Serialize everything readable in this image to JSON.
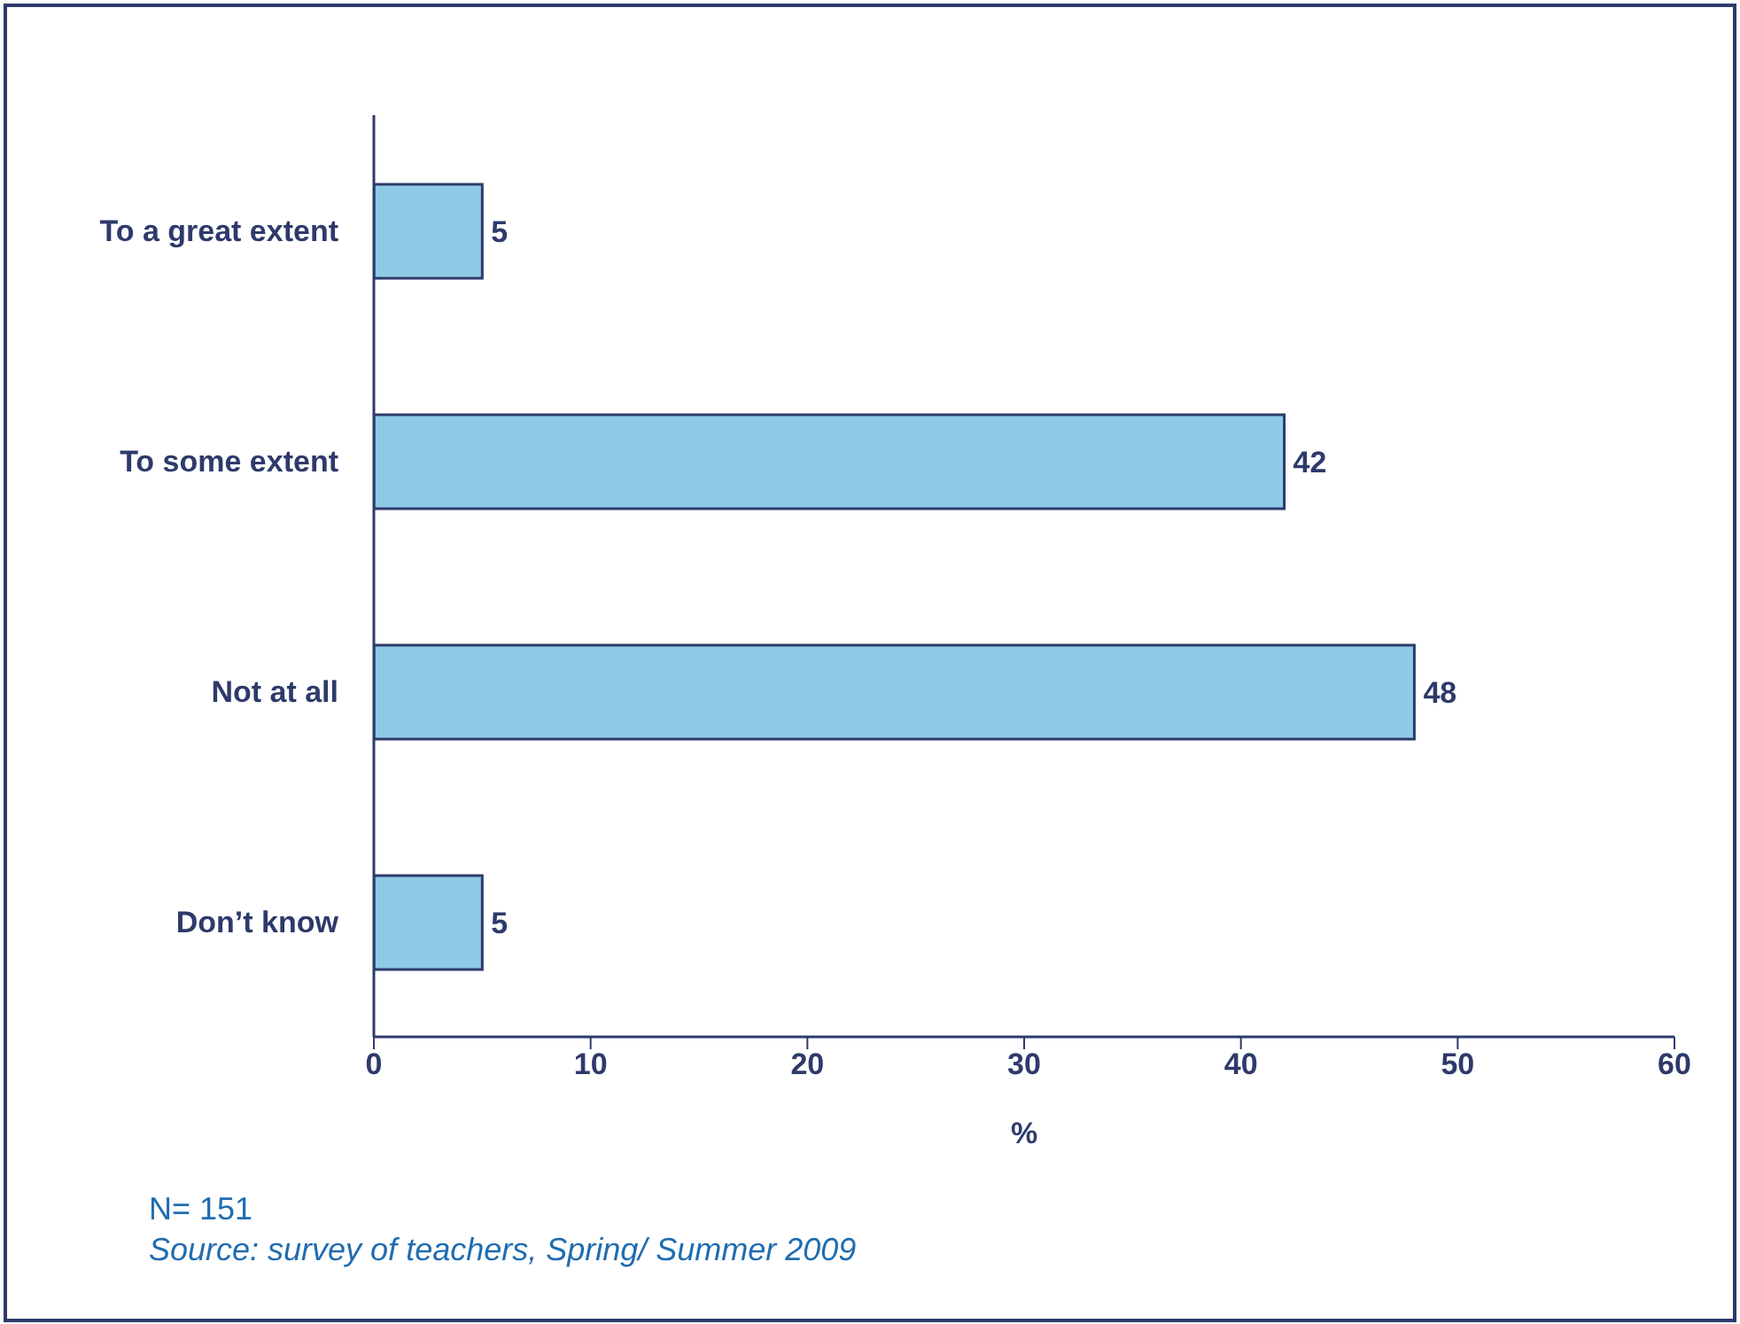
{
  "chart_data": {
    "type": "bar",
    "orientation": "horizontal",
    "categories": [
      "To a great extent",
      "To some extent",
      "Not at all",
      "Don’t know"
    ],
    "values": [
      5,
      42,
      48,
      5
    ],
    "color": "#8ecae6",
    "xlim": [
      0,
      60
    ],
    "xticks": [
      0,
      10,
      20,
      30,
      40,
      50,
      60
    ],
    "xlabel": "%",
    "data_labels": true,
    "grid": false,
    "legend": false,
    "annotations": [
      "N= 151",
      "Source: survey of teachers, Spring/ Summer 2009"
    ]
  }
}
